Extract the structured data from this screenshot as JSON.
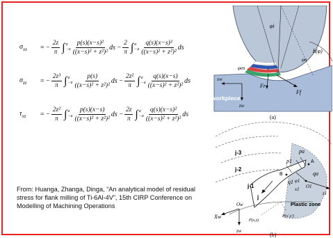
{
  "equations": {
    "sigma_xx": {
      "lhs": "σ",
      "sub": "xx",
      "c1": "−",
      "c1_num": "2z",
      "c2": "−",
      "c2_num": "2",
      "t1_num": "p(s)(x−s)²",
      "t1_den": "((x−s)² + z²)²",
      "t2_num": "q(s)(x−s)³",
      "t2_den": "((x−s)² + z²)²"
    },
    "sigma_zz": {
      "lhs": "σ",
      "sub": "zz",
      "c1": "−",
      "c1_num": "2z³",
      "c2": "−",
      "c2_num": "2z²",
      "t1_num": "p(s)",
      "t1_den": "((x−s)² + z²)²",
      "t2_num": "q(s)(x−s)",
      "t2_den": "((x−s)² + z²)²"
    },
    "tau_xz": {
      "lhs": "τ",
      "sub": "xz",
      "c1": "−",
      "c1_num": "2z²",
      "c2": "−",
      "c2_num": "2z",
      "t1_num": "p(s)(x−s)",
      "t1_den": "((x−s)² + z²)²",
      "t2_num": "q(s)(x−s)²",
      "t2_den": "((x−s)² + z²)²"
    },
    "pi": "π",
    "upper_limit": "a",
    "lower_limit": "−a",
    "ds": "ds"
  },
  "citation": "From: Huanga, Zhanga, Dinga, “An analytical model of residual stress for flank milling of Ti-6Al-4V”, 15th CIRP Conference on Modelling of Machining Operations",
  "figure": {
    "panel_a": {
      "caption": "(a)",
      "workpiece_label": "workpiece",
      "labels": {
        "phi_i": "φi",
        "phi_n": "φn",
        "phi_en": "φen",
        "h_phi": "h(φ)",
        "x_w": "xw",
        "z_w": "zw",
        "F_r": "Fr",
        "F_f": "Ff"
      }
    },
    "panel_b": {
      "caption": "(b)",
      "plastic_zone": "Plastic zone",
      "labels": {
        "j3": "j-3",
        "j2": "j-2",
        "j1": "j-1",
        "j": "j",
        "A": "A",
        "B": "B",
        "p_a": "pa",
        "p_1": "p1",
        "q_a": "qa",
        "q_1": "q1",
        "phi_1": "φ1",
        "x_1": "x1",
        "O_1": "O1",
        "z_1": "z1",
        "O_w": "Ow",
        "X_w": "Xw",
        "z_w": "zw",
        "P_xz_prime": "P(x′,z′)",
        "P_xz": "P(x,z)"
      }
    }
  },
  "colors": {
    "frame": "#e8231f",
    "tool_fill": "#b9c7d9",
    "workpiece_fill": "#a9bddb",
    "plastic_fill": "#c8d2de"
  }
}
